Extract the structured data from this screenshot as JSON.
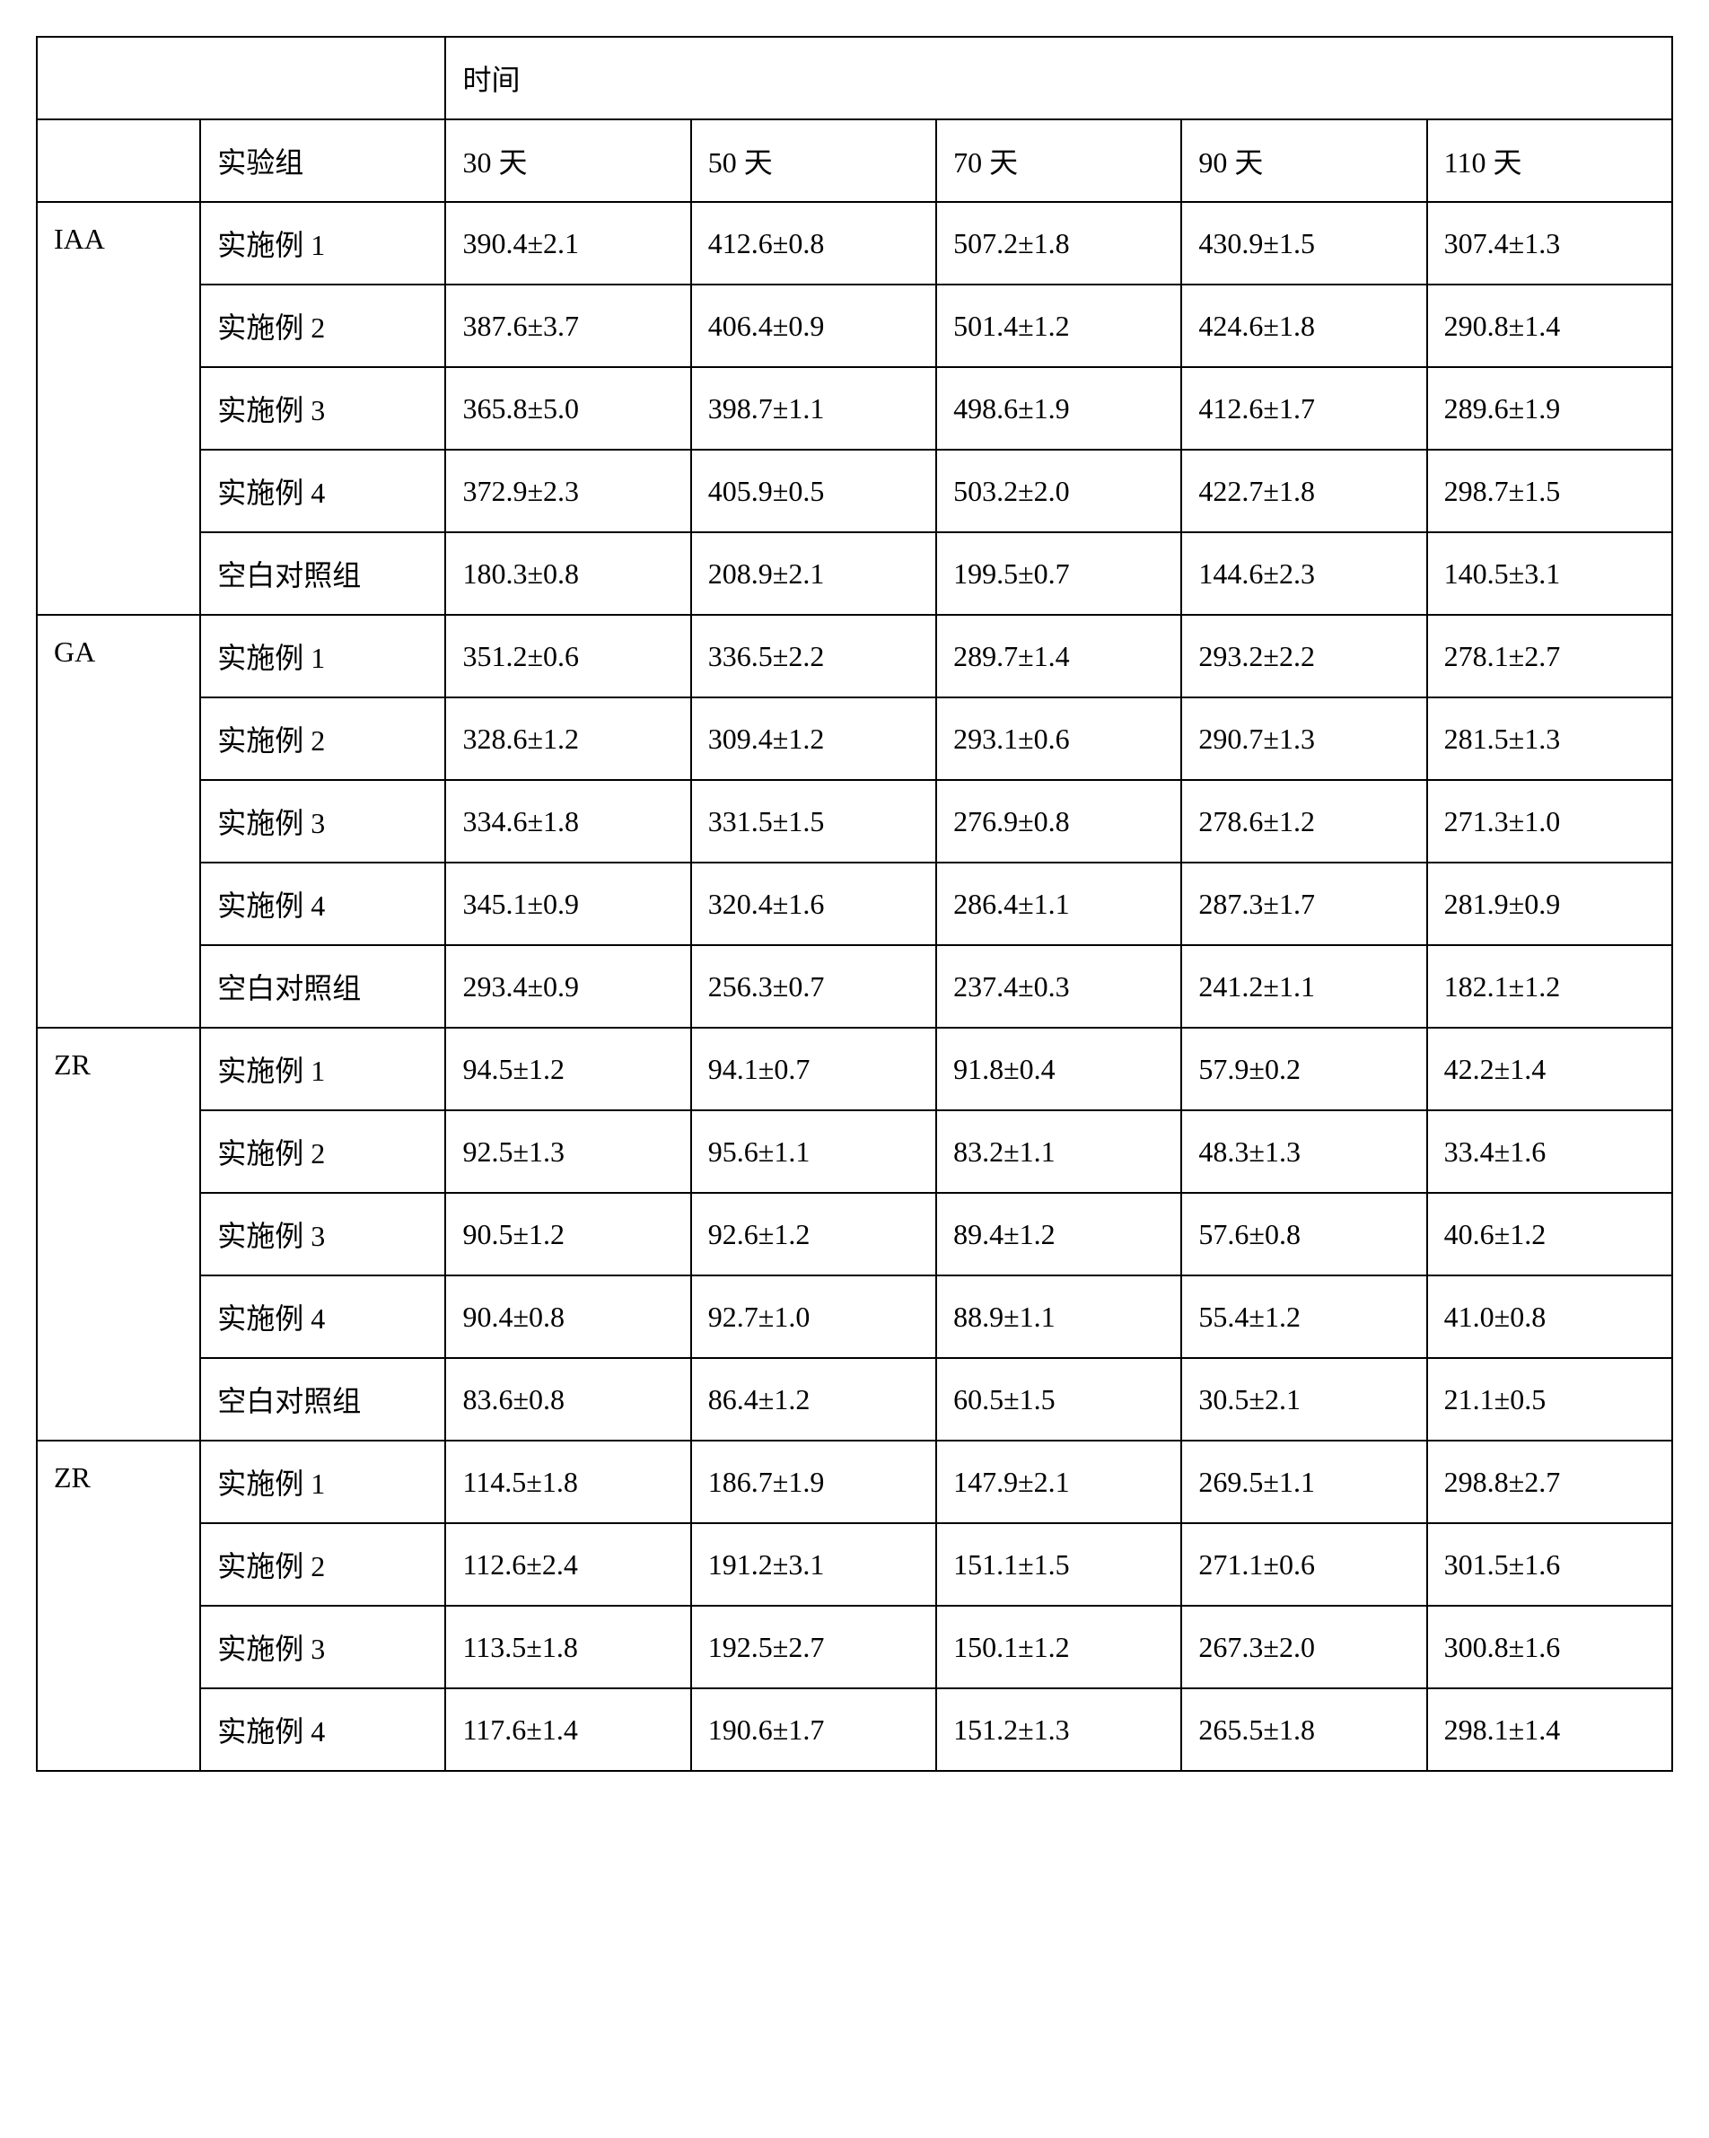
{
  "table": {
    "type": "table",
    "header": {
      "time_label": "时间",
      "group_label": "实验组",
      "time_columns": [
        "30 天",
        "50 天",
        "70 天",
        "90 天",
        "110 天"
      ]
    },
    "column_widths": {
      "analyte": "10%",
      "group": "15%",
      "data": "15%"
    },
    "border_color": "#000000",
    "background_color": "#ffffff",
    "text_color": "#000000",
    "font_size": 32,
    "cell_padding": "22px 18px",
    "sections": [
      {
        "analyte": "IAA",
        "rows": [
          {
            "group": "实施例 1",
            "values": [
              "390.4±2.1",
              "412.6±0.8",
              "507.2±1.8",
              "430.9±1.5",
              "307.4±1.3"
            ]
          },
          {
            "group": "实施例 2",
            "values": [
              "387.6±3.7",
              "406.4±0.9",
              "501.4±1.2",
              "424.6±1.8",
              "290.8±1.4"
            ]
          },
          {
            "group": "实施例 3",
            "values": [
              "365.8±5.0",
              "398.7±1.1",
              "498.6±1.9",
              "412.6±1.7",
              "289.6±1.9"
            ]
          },
          {
            "group": "实施例 4",
            "values": [
              "372.9±2.3",
              "405.9±0.5",
              "503.2±2.0",
              "422.7±1.8",
              "298.7±1.5"
            ]
          },
          {
            "group": "空白对照组",
            "values": [
              "180.3±0.8",
              "208.9±2.1",
              "199.5±0.7",
              "144.6±2.3",
              "140.5±3.1"
            ]
          }
        ]
      },
      {
        "analyte": "GA",
        "rows": [
          {
            "group": "实施例 1",
            "values": [
              "351.2±0.6",
              "336.5±2.2",
              "289.7±1.4",
              "293.2±2.2",
              "278.1±2.7"
            ]
          },
          {
            "group": "实施例 2",
            "values": [
              "328.6±1.2",
              "309.4±1.2",
              "293.1±0.6",
              "290.7±1.3",
              "281.5±1.3"
            ]
          },
          {
            "group": "实施例 3",
            "values": [
              "334.6±1.8",
              "331.5±1.5",
              "276.9±0.8",
              "278.6±1.2",
              "271.3±1.0"
            ]
          },
          {
            "group": "实施例 4",
            "values": [
              "345.1±0.9",
              "320.4±1.6",
              "286.4±1.1",
              "287.3±1.7",
              "281.9±0.9"
            ]
          },
          {
            "group": "空白对照组",
            "values": [
              "293.4±0.9",
              "256.3±0.7",
              "237.4±0.3",
              "241.2±1.1",
              "182.1±1.2"
            ]
          }
        ]
      },
      {
        "analyte": "ZR",
        "rows": [
          {
            "group": "实施例 1",
            "values": [
              "94.5±1.2",
              "94.1±0.7",
              "91.8±0.4",
              "57.9±0.2",
              "42.2±1.4"
            ]
          },
          {
            "group": "实施例 2",
            "values": [
              "92.5±1.3",
              "95.6±1.1",
              "83.2±1.1",
              "48.3±1.3",
              "33.4±1.6"
            ]
          },
          {
            "group": "实施例 3",
            "values": [
              "90.5±1.2",
              "92.6±1.2",
              "89.4±1.2",
              "57.6±0.8",
              "40.6±1.2"
            ]
          },
          {
            "group": "实施例 4",
            "values": [
              "90.4±0.8",
              "92.7±1.0",
              "88.9±1.1",
              "55.4±1.2",
              "41.0±0.8"
            ]
          },
          {
            "group": "空白对照组",
            "values": [
              "83.6±0.8",
              "86.4±1.2",
              "60.5±1.5",
              "30.5±2.1",
              "21.1±0.5"
            ]
          }
        ]
      },
      {
        "analyte": "ZR",
        "rows": [
          {
            "group": "实施例 1",
            "values": [
              "114.5±1.8",
              "186.7±1.9",
              "147.9±2.1",
              "269.5±1.1",
              "298.8±2.7"
            ]
          },
          {
            "group": "实施例 2",
            "values": [
              "112.6±2.4",
              "191.2±3.1",
              "151.1±1.5",
              "271.1±0.6",
              "301.5±1.6"
            ]
          },
          {
            "group": "实施例 3",
            "values": [
              "113.5±1.8",
              "192.5±2.7",
              "150.1±1.2",
              "267.3±2.0",
              "300.8±1.6"
            ]
          },
          {
            "group": "实施例 4",
            "values": [
              "117.6±1.4",
              "190.6±1.7",
              "151.2±1.3",
              "265.5±1.8",
              "298.1±1.4"
            ]
          }
        ]
      }
    ]
  }
}
